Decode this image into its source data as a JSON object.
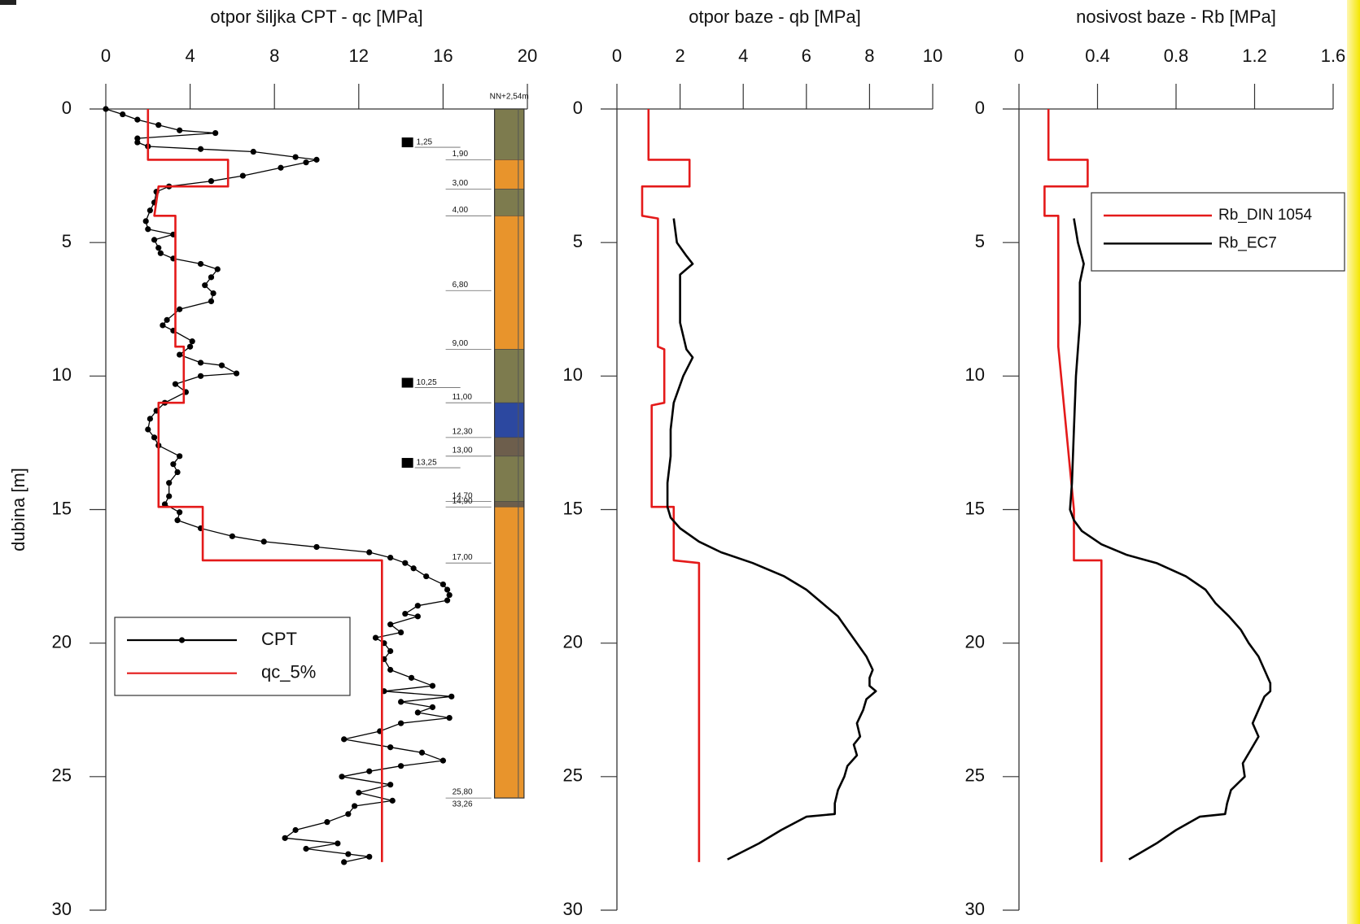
{
  "chart_data": [
    {
      "type": "line",
      "title": "otpor šiljka CPT - qc [MPa]",
      "ylabel": "dubina [m]",
      "xlim": [
        0,
        20
      ],
      "xticks": [
        0,
        4,
        8,
        12,
        16,
        20
      ],
      "ylim": [
        0,
        30
      ],
      "yticks": [
        0,
        5,
        10,
        15,
        20,
        25,
        30
      ],
      "invert_y": true,
      "legend": "lower left",
      "series": [
        {
          "name": "CPT",
          "color": "#000000",
          "markers": true,
          "y": [
            0,
            0.2,
            0.4,
            0.6,
            0.8,
            0.9,
            1.1,
            1.25,
            1.4,
            1.5,
            1.6,
            1.8,
            1.9,
            2.0,
            2.2,
            2.5,
            2.7,
            2.9,
            3.1,
            3.5,
            3.8,
            4.2,
            4.5,
            4.7,
            4.9,
            5.2,
            5.4,
            5.6,
            5.8,
            6.0,
            6.3,
            6.6,
            6.9,
            7.2,
            7.5,
            7.9,
            8.1,
            8.3,
            8.7,
            8.9,
            9.2,
            9.5,
            9.6,
            9.9,
            10.0,
            10.3,
            10.6,
            11.0,
            11.3,
            11.6,
            12.0,
            12.3,
            12.6,
            13.0,
            13.3,
            13.6,
            14.0,
            14.5,
            14.8,
            15.1,
            15.4,
            15.7,
            16.0,
            16.2,
            16.4,
            16.6,
            16.8,
            17.0,
            17.2,
            17.5,
            17.8,
            18.0,
            18.2,
            18.4,
            18.6,
            18.9,
            19.0,
            19.3,
            19.6,
            19.8,
            20.0,
            20.3,
            20.6,
            21.0,
            21.3,
            21.6,
            21.8,
            22.0,
            22.2,
            22.4,
            22.6,
            22.8,
            23.0,
            23.3,
            23.6,
            23.9,
            24.1,
            24.4,
            24.6,
            24.8,
            25.0,
            25.3,
            25.6,
            25.9,
            26.1,
            26.4,
            26.7,
            27.0,
            27.3,
            27.5,
            27.7,
            27.9,
            28.0,
            28.2
          ],
          "x": [
            0,
            0.8,
            1.5,
            2.5,
            3.5,
            5.2,
            1.5,
            1.5,
            2.0,
            4.5,
            7,
            9,
            10,
            9.5,
            8.3,
            6.5,
            5,
            3,
            2.4,
            2.3,
            2.1,
            1.9,
            2.0,
            3.2,
            2.3,
            2.5,
            2.6,
            3.2,
            4.5,
            5.3,
            5.0,
            4.7,
            5.1,
            5.0,
            3.5,
            2.9,
            2.7,
            3.2,
            4.1,
            4.0,
            3.5,
            4.5,
            5.5,
            6.2,
            4.5,
            3.3,
            3.8,
            2.8,
            2.4,
            2.1,
            2.0,
            2.3,
            2.5,
            3.5,
            3.2,
            3.4,
            3.0,
            3.0,
            2.8,
            3.5,
            3.4,
            4.5,
            6.0,
            7.5,
            10,
            12.5,
            13.5,
            14.2,
            14.6,
            15.2,
            16.0,
            16.2,
            16.3,
            16.2,
            14.8,
            14.2,
            14.8,
            13.5,
            14.0,
            12.8,
            13.2,
            13.5,
            13.2,
            13.5,
            14.5,
            15.5,
            13.2,
            16.4,
            14.0,
            15.5,
            14.8,
            16.3,
            14.0,
            13.0,
            11.3,
            13.5,
            15.0,
            16.0,
            14.0,
            12.5,
            11.2,
            13.5,
            12.0,
            13.6,
            11.8,
            11.5,
            10.5,
            9.0,
            8.5,
            11.0,
            9.5,
            11.5,
            12.5,
            11.3
          ]
        },
        {
          "name": "qc_5%",
          "color": "#e41a1a",
          "markers": false,
          "y": [
            0,
            1.9,
            1.9,
            2.9,
            2.9,
            4.0,
            4.0,
            8.9,
            8.9,
            11.0,
            11.0,
            14.9,
            14.9,
            16.9,
            16.9,
            28.2
          ],
          "x": [
            2.0,
            2.0,
            5.8,
            5.8,
            2.5,
            2.3,
            3.3,
            3.3,
            3.7,
            3.7,
            2.5,
            2.5,
            4.6,
            4.6,
            13.1,
            13.1
          ]
        }
      ],
      "soil_column": {
        "layers": [
          {
            "top": 0,
            "bottom": 1.9,
            "color": "#7d7b4e"
          },
          {
            "top": 1.9,
            "bottom": 3.0,
            "color": "#e8942c"
          },
          {
            "top": 3.0,
            "bottom": 4.0,
            "color": "#7d7b4e"
          },
          {
            "top": 4.0,
            "bottom": 9.0,
            "color": "#e8942c"
          },
          {
            "top": 9.0,
            "bottom": 11.0,
            "color": "#7d7b4e"
          },
          {
            "top": 11.0,
            "bottom": 12.3,
            "color": "#2c48a0"
          },
          {
            "top": 12.3,
            "bottom": 13.0,
            "color": "#6d5e4c"
          },
          {
            "top": 13.0,
            "bottom": 14.7,
            "color": "#7d7b4e"
          },
          {
            "top": 14.7,
            "bottom": 14.9,
            "color": "#6d5e4c"
          },
          {
            "top": 14.9,
            "bottom": 25.8,
            "color": "#e8942c"
          }
        ],
        "depth_labels": [
          {
            "value": 1.9,
            "label": "1,90"
          },
          {
            "value": 3.0,
            "label": "3,00"
          },
          {
            "value": 4.0,
            "label": "4,00"
          },
          {
            "value": 6.8,
            "label": "6,80"
          },
          {
            "value": 9.0,
            "label": "9,00"
          },
          {
            "value": 11.0,
            "label": "11,00"
          },
          {
            "value": 12.3,
            "label": "12,30"
          },
          {
            "value": 13.0,
            "label": "13,00"
          },
          {
            "value": 14.7,
            "label": "14,70"
          },
          {
            "value": 14.9,
            "label": "14,90"
          },
          {
            "value": 17.0,
            "label": "17,00"
          },
          {
            "value": 25.8,
            "label": "25,80"
          }
        ],
        "samples": [
          {
            "value": 1.25,
            "label": "1,25"
          },
          {
            "value": 10.25,
            "label": "10,25"
          },
          {
            "value": 13.25,
            "label": "13,25"
          }
        ],
        "notes": [
          "NN+2,54m",
          "33,26"
        ]
      }
    },
    {
      "type": "line",
      "title": "otpor baze - qb [MPa]",
      "xlim": [
        0,
        10
      ],
      "xticks": [
        0,
        2,
        4,
        6,
        8,
        10
      ],
      "ylim": [
        0,
        30
      ],
      "yticks": [
        0,
        5,
        10,
        15,
        20,
        25,
        30
      ],
      "invert_y": true,
      "series": [
        {
          "color": "#e41a1a",
          "markers": false,
          "y": [
            0,
            1.9,
            1.9,
            2.9,
            2.9,
            4.0,
            4.1,
            8.9,
            9.0,
            11.0,
            11.1,
            14.9,
            14.9,
            16.9,
            17.0,
            28.2
          ],
          "x": [
            1.0,
            1.0,
            2.3,
            2.3,
            0.8,
            0.8,
            1.3,
            1.3,
            1.5,
            1.5,
            1.1,
            1.1,
            1.8,
            1.8,
            2.6,
            2.6
          ]
        },
        {
          "color": "#000000",
          "markers": false,
          "y": [
            4.1,
            5.0,
            5.5,
            5.8,
            6.2,
            7.0,
            8.0,
            9.0,
            9.3,
            10.0,
            11.0,
            12.0,
            13.0,
            14.0,
            14.9,
            15.3,
            15.7,
            16.2,
            16.6,
            17.0,
            17.5,
            18.0,
            18.5,
            19.0,
            19.5,
            20.0,
            20.5,
            21.0,
            21.3,
            21.6,
            21.8,
            22.1,
            22.5,
            23.0,
            23.5,
            23.8,
            24.2,
            24.6,
            25.0,
            25.5,
            26.0,
            26.4,
            26.5,
            27.0,
            27.5,
            28.1
          ],
          "x": [
            1.8,
            1.9,
            2.2,
            2.4,
            2.0,
            2.0,
            2.0,
            2.2,
            2.4,
            2.1,
            1.8,
            1.7,
            1.7,
            1.6,
            1.6,
            1.7,
            2.0,
            2.6,
            3.3,
            4.3,
            5.3,
            6.0,
            6.5,
            7.0,
            7.3,
            7.6,
            7.9,
            8.1,
            8.0,
            8.0,
            8.2,
            7.9,
            7.8,
            7.6,
            7.7,
            7.5,
            7.6,
            7.3,
            7.2,
            7.0,
            6.9,
            6.9,
            6.0,
            5.2,
            4.5,
            3.5
          ]
        }
      ]
    },
    {
      "type": "line",
      "title": "nosivost baze - Rb [MPa]",
      "xlim": [
        0,
        1.6
      ],
      "xticks": [
        0,
        0.4,
        0.8,
        1.2,
        1.6
      ],
      "ylim": [
        0,
        30
      ],
      "yticks": [
        0,
        5,
        10,
        15,
        20,
        25,
        30
      ],
      "invert_y": true,
      "legend": "upper right",
      "series": [
        {
          "name": "Rb_DIN 1054",
          "color": "#e41a1a",
          "markers": false,
          "y": [
            0,
            1.9,
            1.9,
            2.9,
            2.9,
            4.0,
            4.0,
            8.9,
            15.0,
            16.9,
            16.9,
            28.2
          ],
          "x": [
            0.15,
            0.15,
            0.35,
            0.35,
            0.13,
            0.13,
            0.2,
            0.2,
            0.28,
            0.28,
            0.42,
            0.42
          ]
        },
        {
          "name": "Rb_EC7",
          "color": "#000000",
          "markers": false,
          "y": [
            4.1,
            5.0,
            5.8,
            6.5,
            8.0,
            9.0,
            10.0,
            12.0,
            14.0,
            15.0,
            15.4,
            15.8,
            16.3,
            16.7,
            17.0,
            17.5,
            18.0,
            18.5,
            19.0,
            19.5,
            20.0,
            20.5,
            21.0,
            21.5,
            21.8,
            22.0,
            22.5,
            23.0,
            23.5,
            24.0,
            24.5,
            25.0,
            25.5,
            26.0,
            26.4,
            26.5,
            27.0,
            27.5,
            28.1
          ],
          "x": [
            0.28,
            0.3,
            0.33,
            0.31,
            0.31,
            0.3,
            0.29,
            0.28,
            0.27,
            0.26,
            0.28,
            0.32,
            0.42,
            0.55,
            0.7,
            0.85,
            0.95,
            1.0,
            1.07,
            1.13,
            1.17,
            1.22,
            1.25,
            1.28,
            1.28,
            1.25,
            1.22,
            1.19,
            1.22,
            1.18,
            1.14,
            1.15,
            1.08,
            1.06,
            1.05,
            0.92,
            0.8,
            0.7,
            0.56
          ]
        }
      ]
    }
  ]
}
